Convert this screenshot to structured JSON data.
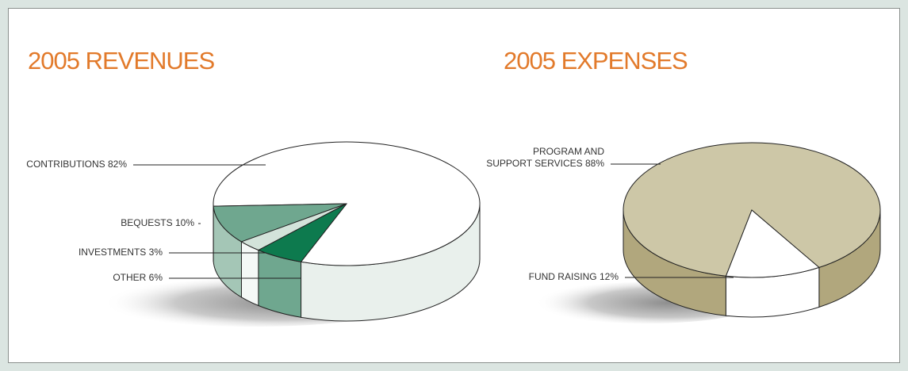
{
  "chart_data": [
    {
      "type": "pie3d",
      "title": "2005 REVENUES",
      "categories": [
        "CONTRIBUTIONS",
        "BEQUESTS",
        "INVESTMENTS",
        "OTHER"
      ],
      "values": [
        82,
        10,
        3,
        6
      ],
      "value_labels": [
        "82%",
        "10%",
        "3%",
        "6%"
      ],
      "colors": [
        "#ffffff",
        "#6fa78f",
        "#d3e3da",
        "#0d7a4e"
      ],
      "side_colors": [
        "#e9f0ec",
        "#a4c6b6",
        "#f4f8f6",
        "#6fa78f"
      ]
    },
    {
      "type": "pie3d",
      "title": "2005 EXPENSES",
      "categories": [
        "PROGRAM AND SUPPORT SERVICES",
        "FUND RAISING"
      ],
      "values": [
        88,
        12
      ],
      "value_labels": [
        "88%",
        "12%"
      ],
      "colors": [
        "#cdc7a7",
        "#ffffff"
      ],
      "side_colors": [
        "#b1a77d",
        "#ffffff"
      ]
    }
  ]
}
